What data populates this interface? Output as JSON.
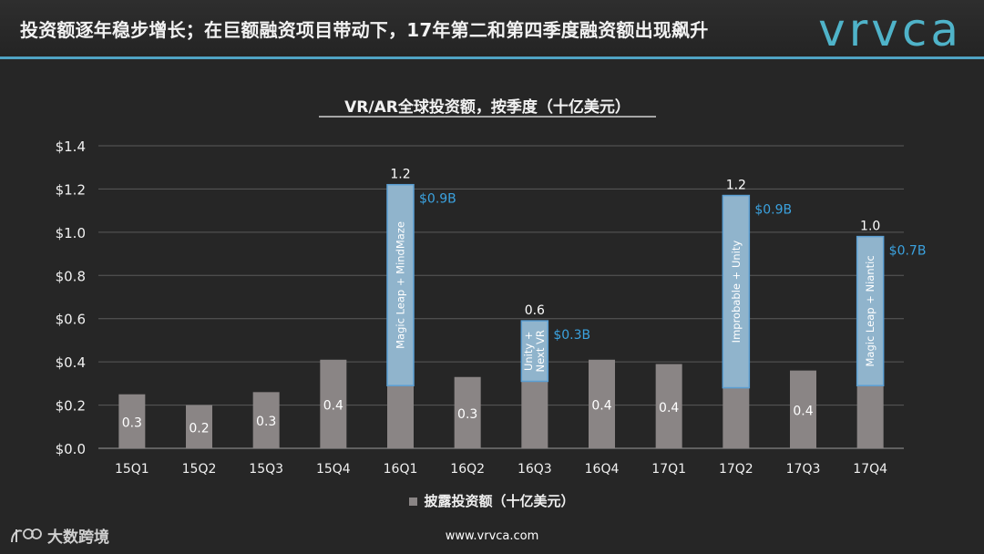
{
  "header": {
    "headline": "投资额逐年稳步增长；在巨额融资项目带动下，17年第二和第四季度融资额出现飙升",
    "logo": "vrvca"
  },
  "footer": {
    "url": "www.vrvca.com",
    "watermark": "大数跨境"
  },
  "colors": {
    "base_bar": "#8a8585",
    "spike_bar": "#90b4cc",
    "spike_border": "#5b9fd3",
    "spike_label": "#3ba2df",
    "accent_rule": "#4fa3c3",
    "background": "#262626"
  },
  "chart_data": {
    "type": "bar",
    "title": "VR/AR全球投资额，按季度（十亿美元）",
    "categories": [
      "15Q1",
      "15Q2",
      "15Q3",
      "15Q4",
      "16Q1",
      "16Q2",
      "16Q3",
      "16Q4",
      "17Q1",
      "17Q2",
      "17Q3",
      "17Q4"
    ],
    "series": [
      {
        "name": "披露投资额（十亿美元）",
        "values": [
          0.25,
          0.2,
          0.26,
          0.41,
          0.29,
          0.33,
          0.31,
          0.41,
          0.39,
          0.28,
          0.36,
          0.29
        ],
        "data_labels": [
          "0.3",
          "0.2",
          "0.3",
          "0.4",
          "",
          "0.3",
          "",
          "0.4",
          "0.4",
          "",
          "0.4",
          ""
        ]
      }
    ],
    "mega_deals": [
      {
        "category": "16Q1",
        "value": 0.93,
        "total": 1.22,
        "total_label": "1.2",
        "amount_label": "$0.9B",
        "deal": "Magic Leap + MindMaze"
      },
      {
        "category": "16Q3",
        "value": 0.28,
        "total": 0.59,
        "total_label": "0.6",
        "amount_label": "$0.3B",
        "deal": "Unity + Next VR"
      },
      {
        "category": "17Q2",
        "value": 0.89,
        "total": 1.17,
        "total_label": "1.2",
        "amount_label": "$0.9B",
        "deal": "Improbable + Unity"
      },
      {
        "category": "17Q4",
        "value": 0.69,
        "total": 0.98,
        "total_label": "1.0",
        "amount_label": "$0.7B",
        "deal": "Magic Leap + Niantic"
      }
    ],
    "yticks": [
      "$0.0",
      "$0.2",
      "$0.4",
      "$0.6",
      "$0.8",
      "$1.0",
      "$1.2",
      "$1.4"
    ],
    "ylim": [
      0,
      1.4
    ],
    "grid": true,
    "legend": "bottom-center"
  }
}
